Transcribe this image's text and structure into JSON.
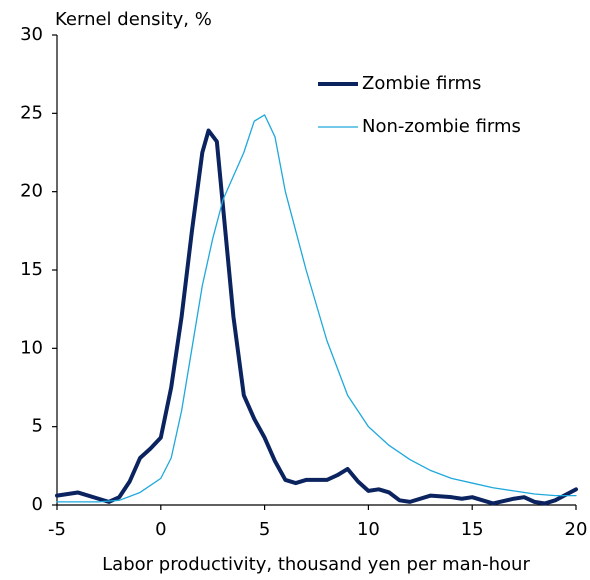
{
  "chart_data": {
    "type": "line",
    "y_axis_label": "Kernel density, %",
    "x_axis_label": "Labor productivity, thousand yen per man-hour",
    "xlim": [
      -5,
      20
    ],
    "xticks": [
      -5,
      0,
      5,
      10,
      15,
      20
    ],
    "ylim": [
      0,
      30
    ],
    "yticks": [
      0,
      5,
      10,
      15,
      20,
      25,
      30
    ],
    "legend": "upper right",
    "series": [
      {
        "name": "Zombie firms",
        "color": "#0b2460",
        "width": 4,
        "x": [
          -5,
          -4,
          -3,
          -2.5,
          -2,
          -1.5,
          -1,
          -0.5,
          0,
          0.5,
          1,
          1.5,
          2,
          2.3,
          2.7,
          3,
          3.5,
          4,
          4.5,
          5,
          5.5,
          6,
          6.5,
          7,
          7.5,
          8,
          8.5,
          9,
          9.5,
          10,
          10.5,
          11,
          11.5,
          12,
          13,
          14,
          14.5,
          15,
          15.5,
          16,
          17,
          17.5,
          18,
          18.5,
          19,
          20
        ],
        "values": [
          0.6,
          0.8,
          0.4,
          0.2,
          0.5,
          1.5,
          3.0,
          3.6,
          4.3,
          7.5,
          12,
          17.5,
          22.5,
          23.9,
          23.2,
          19,
          12,
          7,
          5.5,
          4.3,
          2.8,
          1.6,
          1.4,
          1.6,
          1.6,
          1.6,
          1.9,
          2.3,
          1.5,
          0.9,
          1.0,
          0.8,
          0.3,
          0.2,
          0.6,
          0.5,
          0.4,
          0.5,
          0.3,
          0.1,
          0.4,
          0.5,
          0.2,
          0.1,
          0.3,
          1.0
        ]
      },
      {
        "name": "Non-zombie firms",
        "color": "#1fa8dc",
        "width": 1.3,
        "x": [
          -5,
          -3,
          -2,
          -1,
          0,
          0.5,
          1,
          1.5,
          2,
          2.5,
          3,
          3.5,
          4,
          4.5,
          5,
          5.5,
          6,
          7,
          8,
          9,
          10,
          11,
          12,
          13,
          14,
          15,
          16,
          17,
          18,
          19,
          20
        ],
        "values": [
          0.2,
          0.2,
          0.3,
          0.8,
          1.7,
          3,
          6,
          10,
          14,
          17,
          19.5,
          21,
          22.5,
          24.5,
          24.9,
          23.5,
          20,
          15,
          10.5,
          7,
          5,
          3.8,
          2.9,
          2.2,
          1.7,
          1.4,
          1.1,
          0.9,
          0.7,
          0.6,
          0.6
        ]
      }
    ]
  }
}
